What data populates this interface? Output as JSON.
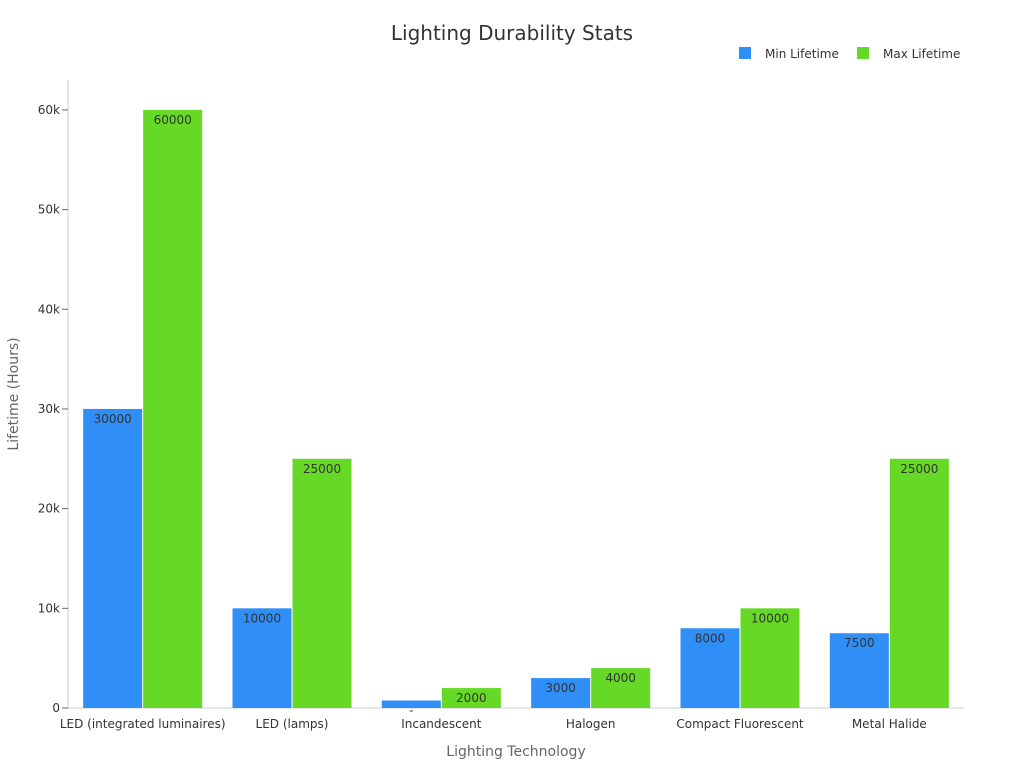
{
  "chart_data": {
    "type": "bar",
    "title": "Lighting Durability Stats",
    "xlabel": "Lighting Technology",
    "ylabel": "Lifetime (Hours)",
    "categories": [
      "LED (integrated luminaires)",
      "LED (lamps)",
      "Incandescent",
      "Halogen",
      "Compact Fluorescent",
      "Metal Halide"
    ],
    "series": [
      {
        "name": "Min Lifetime",
        "values": [
          30000,
          10000,
          750,
          3000,
          8000,
          7500
        ],
        "color": "#2f8ff7"
      },
      {
        "name": "Max Lifetime",
        "values": [
          60000,
          25000,
          2000,
          4000,
          10000,
          25000
        ],
        "color": "#66d927"
      }
    ],
    "data_labels": [
      [
        "30000",
        "10000",
        "-",
        "3000",
        "8000",
        "7500"
      ],
      [
        "60000",
        "25000",
        "2000",
        "4000",
        "10000",
        "25000"
      ]
    ],
    "ylim": [
      0,
      63000
    ],
    "yticks": [
      0,
      10000,
      20000,
      30000,
      40000,
      50000,
      60000
    ],
    "ytick_labels": [
      "0",
      "10k",
      "20k",
      "30k",
      "40k",
      "50k",
      "60k"
    ],
    "legend_position": "top-right",
    "grid": false
  }
}
